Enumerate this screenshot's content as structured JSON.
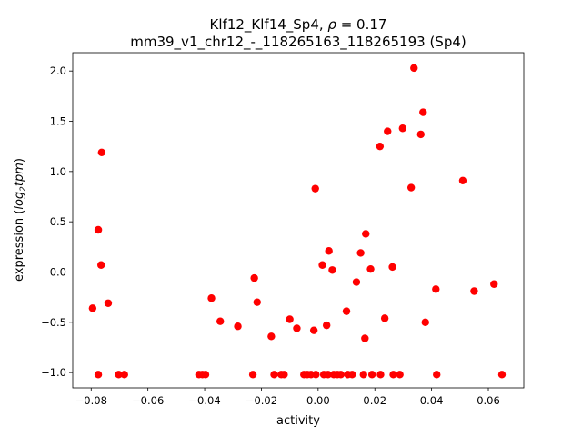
{
  "chart_data": {
    "type": "scatter",
    "title_line1": "Klf12_Klf14_Sp4, ",
    "title_rho_symbol": "ρ",
    "title_rho_value": " = 0.17",
    "title_line2": "mm39_v1_chr12_-_118265163_118265193 (Sp4)",
    "xlabel": "activity",
    "ylabel_prefix": "expression (",
    "ylabel_log": "log",
    "ylabel_sub": "2",
    "ylabel_tpm": "tpm",
    "ylabel_suffix": ")",
    "xlim": [
      -0.0865,
      0.0725
    ],
    "ylim": [
      -1.1525,
      2.1825
    ],
    "xticks": [
      {
        "value": -0.08,
        "label": "−0.08"
      },
      {
        "value": -0.06,
        "label": "−0.06"
      },
      {
        "value": -0.04,
        "label": "−0.04"
      },
      {
        "value": -0.02,
        "label": "−0.02"
      },
      {
        "value": 0.0,
        "label": "0.00"
      },
      {
        "value": 0.02,
        "label": "0.02"
      },
      {
        "value": 0.04,
        "label": "0.04"
      },
      {
        "value": 0.06,
        "label": "0.06"
      }
    ],
    "yticks": [
      {
        "value": -1.0,
        "label": "−1.0"
      },
      {
        "value": -0.5,
        "label": "−0.5"
      },
      {
        "value": 0.0,
        "label": "0.0"
      },
      {
        "value": 0.5,
        "label": "0.5"
      },
      {
        "value": 1.0,
        "label": "1.0"
      },
      {
        "value": 1.5,
        "label": "1.5"
      },
      {
        "value": 2.0,
        "label": "2.0"
      }
    ],
    "marker_color": "#ff0000",
    "points": [
      [
        -0.0795,
        -0.36
      ],
      [
        -0.0775,
        0.42
      ],
      [
        -0.0763,
        1.19
      ],
      [
        -0.0765,
        0.07
      ],
      [
        -0.074,
        -0.31
      ],
      [
        -0.0775,
        -1.02
      ],
      [
        -0.0703,
        -1.02
      ],
      [
        -0.0683,
        -1.02
      ],
      [
        -0.042,
        -1.02
      ],
      [
        -0.0408,
        -1.02
      ],
      [
        -0.0397,
        -1.02
      ],
      [
        -0.0376,
        -0.26
      ],
      [
        -0.0345,
        -0.49
      ],
      [
        -0.0283,
        -0.54
      ],
      [
        -0.023,
        -1.02
      ],
      [
        -0.0225,
        -0.06
      ],
      [
        -0.0215,
        -0.3
      ],
      [
        -0.0165,
        -0.64
      ],
      [
        -0.0155,
        -1.02
      ],
      [
        -0.013,
        -1.02
      ],
      [
        -0.012,
        -1.02
      ],
      [
        -0.01,
        -0.47
      ],
      [
        -0.0075,
        -0.56
      ],
      [
        -0.005,
        -1.02
      ],
      [
        -0.0038,
        -1.02
      ],
      [
        -0.0025,
        -1.02
      ],
      [
        -0.0015,
        -0.58
      ],
      [
        -0.001,
        0.83
      ],
      [
        -0.0008,
        -1.02
      ],
      [
        0.0015,
        0.07
      ],
      [
        0.002,
        -1.02
      ],
      [
        0.003,
        -0.53
      ],
      [
        0.0035,
        -1.02
      ],
      [
        0.0038,
        0.21
      ],
      [
        0.005,
        0.02
      ],
      [
        0.0055,
        -1.02
      ],
      [
        0.0068,
        -1.02
      ],
      [
        0.008,
        -1.02
      ],
      [
        0.01,
        -0.39
      ],
      [
        0.0105,
        -1.02
      ],
      [
        0.012,
        -1.02
      ],
      [
        0.0135,
        -0.1
      ],
      [
        0.015,
        0.19
      ],
      [
        0.016,
        -1.02
      ],
      [
        0.0165,
        -0.66
      ],
      [
        0.0168,
        0.38
      ],
      [
        0.0185,
        0.03
      ],
      [
        0.019,
        -1.02
      ],
      [
        0.0218,
        1.25
      ],
      [
        0.022,
        -1.02
      ],
      [
        0.0235,
        -0.46
      ],
      [
        0.0245,
        1.4
      ],
      [
        0.0262,
        0.05
      ],
      [
        0.0265,
        -1.02
      ],
      [
        0.0288,
        -1.02
      ],
      [
        0.0298,
        1.43
      ],
      [
        0.0328,
        0.84
      ],
      [
        0.0338,
        2.03
      ],
      [
        0.0362,
        1.37
      ],
      [
        0.037,
        1.59
      ],
      [
        0.0378,
        -0.5
      ],
      [
        0.0415,
        -0.17
      ],
      [
        0.0418,
        -1.02
      ],
      [
        0.051,
        0.91
      ],
      [
        0.055,
        -0.19
      ],
      [
        0.062,
        -0.12
      ],
      [
        0.0648,
        -1.02
      ]
    ]
  }
}
